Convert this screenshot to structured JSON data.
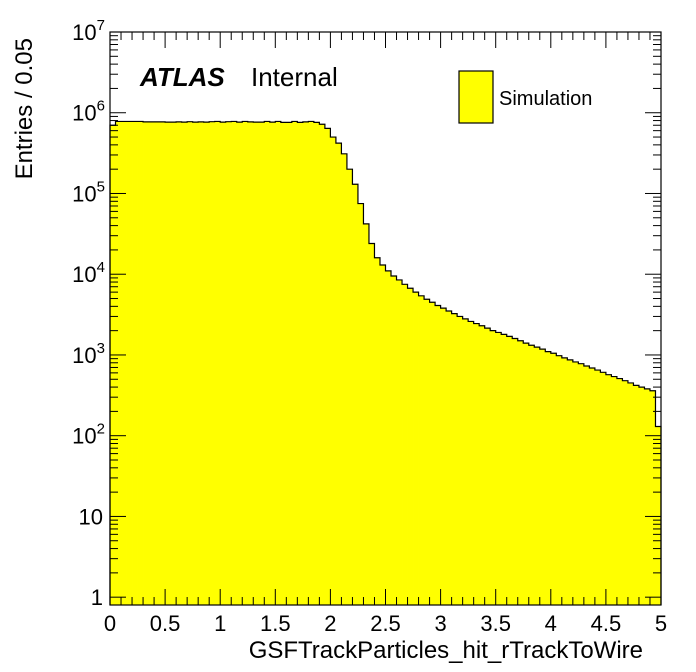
{
  "chart_data": {
    "type": "histogram",
    "xlabel": "GSFTrackParticles_hit_rTrackToWire",
    "ylabel": "Entries / 0.05",
    "xlim": [
      0,
      5
    ],
    "ylim": [
      0.8,
      10000000
    ],
    "yscale": "log",
    "bin_width": 0.05,
    "x_ticks": [
      "0",
      "0.5",
      "1",
      "1.5",
      "2",
      "2.5",
      "3",
      "3.5",
      "4",
      "4.5",
      "5"
    ],
    "y_ticks": [
      {
        "base": "1",
        "exp": ""
      },
      {
        "base": "10",
        "exp": ""
      },
      {
        "base": "10",
        "exp": "2"
      },
      {
        "base": "10",
        "exp": "3"
      },
      {
        "base": "10",
        "exp": "4"
      },
      {
        "base": "10",
        "exp": "5"
      },
      {
        "base": "10",
        "exp": "6"
      },
      {
        "base": "10",
        "exp": "7"
      }
    ],
    "values": [
      700000,
      780000,
      780000,
      780000,
      780000,
      780000,
      770000,
      770000,
      770000,
      770000,
      765000,
      765000,
      770000,
      765000,
      775000,
      765000,
      770000,
      765000,
      775000,
      780000,
      765000,
      775000,
      780000,
      765000,
      780000,
      770000,
      765000,
      765000,
      780000,
      765000,
      780000,
      760000,
      760000,
      780000,
      760000,
      770000,
      780000,
      760000,
      720000,
      640000,
      500000,
      420000,
      310000,
      200000,
      130000,
      75000,
      42000,
      24000,
      16000,
      13000,
      11000,
      9500,
      8500,
      7500,
      6700,
      6000,
      5400,
      4900,
      4500,
      4100,
      3800,
      3500,
      3250,
      3000,
      2800,
      2600,
      2450,
      2300,
      2150,
      2000,
      1900,
      1800,
      1700,
      1600,
      1500,
      1400,
      1320,
      1250,
      1180,
      1100,
      1050,
      980,
      920,
      870,
      820,
      780,
      730,
      690,
      650,
      610,
      570,
      540,
      510,
      480,
      450,
      420,
      400,
      380,
      360,
      130
    ],
    "fill_color": "#ffff00",
    "line_color": "#000000",
    "legend": {
      "label": "Simulation",
      "position": "top-right"
    },
    "label": {
      "experiment": "ATLAS",
      "status": "Internal"
    },
    "grid": false
  }
}
